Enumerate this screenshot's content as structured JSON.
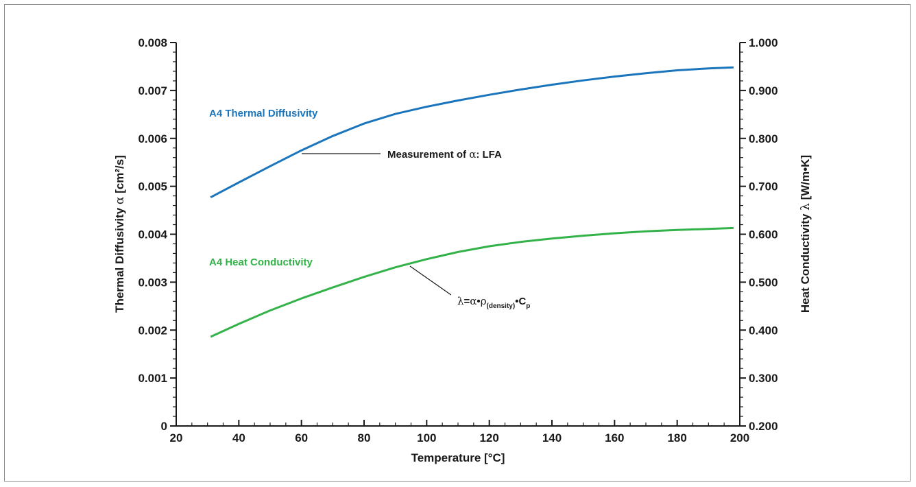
{
  "chart_data": {
    "type": "line",
    "xlabel": "Temperature [°C]",
    "xlim": [
      20,
      200
    ],
    "x_ticks": [
      "20",
      "40",
      "60",
      "80",
      "100",
      "120",
      "140",
      "160",
      "180",
      "200"
    ],
    "y_left": {
      "label_main": "Thermal Diffusivity ",
      "label_symbol": "α",
      "label_unit": " [cm²/s]",
      "lim": [
        0,
        0.008
      ],
      "ticks": [
        "0",
        "0.001",
        "0.002",
        "0.003",
        "0.004",
        "0.005",
        "0.006",
        "0.007",
        "0.008"
      ]
    },
    "y_right": {
      "label_main": "Heat Conductivity ",
      "label_symbol": "λ",
      "label_unit": " [W/m•K]",
      "lim": [
        0.2,
        1.0
      ],
      "ticks": [
        "0.200",
        "0.300",
        "0.400",
        "0.500",
        "0.600",
        "0.700",
        "0.800",
        "0.900",
        "1.000"
      ]
    },
    "grid": false,
    "series": [
      {
        "name": "A4 Thermal Diffusivity",
        "axis": "left",
        "color": "#1a75bc",
        "x": [
          31,
          40,
          50,
          60,
          70,
          80,
          90,
          100,
          110,
          120,
          130,
          140,
          150,
          160,
          170,
          180,
          190,
          198
        ],
        "y": [
          0.00477,
          0.00508,
          0.00542,
          0.00575,
          0.00605,
          0.00631,
          0.00651,
          0.00666,
          0.00679,
          0.00691,
          0.00702,
          0.00712,
          0.00721,
          0.00729,
          0.00736,
          0.00742,
          0.00746,
          0.00748
        ]
      },
      {
        "name": "A4 Heat Conductivity",
        "axis": "right",
        "color": "#33b249",
        "x": [
          31,
          40,
          50,
          60,
          70,
          80,
          90,
          100,
          110,
          120,
          130,
          140,
          150,
          160,
          170,
          180,
          190,
          198
        ],
        "y": [
          0.386,
          0.413,
          0.441,
          0.466,
          0.489,
          0.511,
          0.531,
          0.548,
          0.563,
          0.575,
          0.584,
          0.591,
          0.597,
          0.602,
          0.606,
          0.609,
          0.611,
          0.613
        ]
      }
    ],
    "annotations": {
      "lfa_prefix": "Measurement of ",
      "lfa_symbol": "α",
      "lfa_suffix": ": LFA",
      "formula_lambda": "λ",
      "formula_eq": "=",
      "formula_alpha": "α",
      "formula_dot": "•",
      "formula_rho": "ρ",
      "formula_sub": "(density)",
      "formula_c": "C",
      "formula_csub": "p"
    }
  }
}
